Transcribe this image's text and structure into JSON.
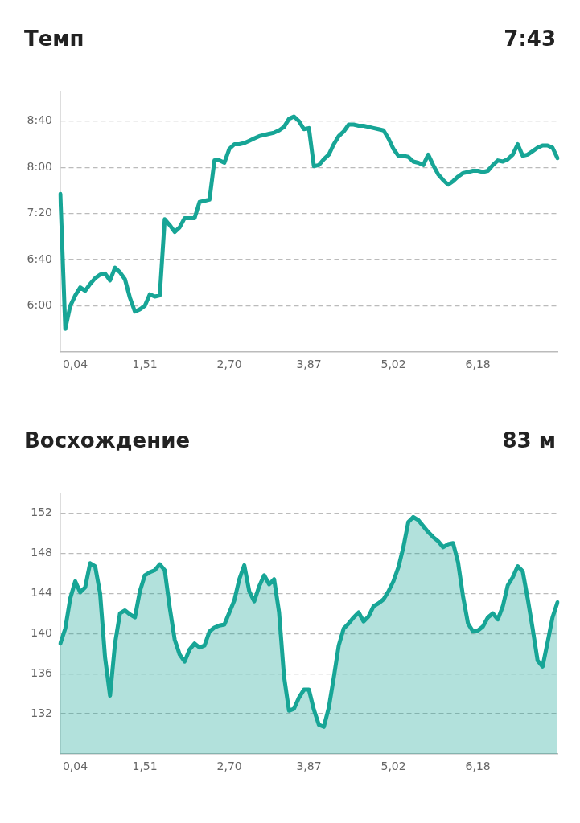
{
  "chart_data": [
    {
      "type": "line",
      "title": "Темп",
      "subtitle": "7:43",
      "marker": "none",
      "grid": "y",
      "ylim": [
        320,
        546
      ],
      "categories": [
        null,
        null,
        null,
        "0,04",
        null,
        null,
        null,
        null,
        null,
        null,
        null,
        null,
        null,
        null,
        null,
        null,
        null,
        "1,51",
        null,
        null,
        null,
        null,
        null,
        null,
        null,
        null,
        null,
        null,
        null,
        null,
        null,
        null,
        null,
        null,
        "2,70",
        null,
        null,
        null,
        null,
        null,
        null,
        null,
        null,
        null,
        null,
        null,
        null,
        null,
        null,
        null,
        "3,87",
        null,
        null,
        null,
        null,
        null,
        null,
        null,
        null,
        null,
        null,
        null,
        null,
        null,
        null,
        null,
        null,
        "5,02",
        null,
        null,
        null,
        null,
        null,
        null,
        null,
        null,
        null,
        null,
        null,
        null,
        null,
        null,
        null,
        null,
        "6,18",
        null,
        null,
        null,
        null,
        null,
        null,
        null,
        null,
        null,
        null,
        null,
        null,
        null,
        null,
        null,
        null
      ],
      "yticks": [
        {
          "value": 360,
          "label": "6:00"
        },
        {
          "value": 400,
          "label": "6:40"
        },
        {
          "value": 440,
          "label": "7:20"
        },
        {
          "value": 480,
          "label": "8:00"
        },
        {
          "value": 520,
          "label": "8:40"
        }
      ],
      "series": [
        {
          "color": "#17a596",
          "values": [
            457,
            340,
            360,
            369,
            376,
            373,
            379,
            384,
            387,
            388,
            382,
            393,
            389,
            383,
            367,
            355,
            357,
            360,
            370,
            368,
            369,
            435,
            430,
            424,
            428,
            436,
            436,
            436,
            450,
            451,
            452,
            486,
            486,
            484,
            496,
            500,
            500,
            501,
            503,
            505,
            507,
            508,
            509,
            510,
            512,
            515,
            522,
            524,
            520,
            513,
            514,
            481,
            482,
            487,
            491,
            500,
            507,
            511,
            517,
            517,
            516,
            516,
            515,
            514,
            513,
            512,
            505,
            496,
            490,
            490,
            489,
            485,
            484,
            482,
            491,
            482,
            474,
            469,
            465,
            468,
            472,
            475,
            476,
            477,
            477,
            476,
            477,
            482,
            486,
            485,
            487,
            491,
            500,
            490,
            491,
            494,
            497,
            499,
            499,
            497,
            488
          ]
        }
      ]
    },
    {
      "type": "area",
      "title": "Восхождение",
      "subtitle": "83 м",
      "marker": "none",
      "grid": "y",
      "ylim": [
        128,
        154
      ],
      "categories": [
        null,
        null,
        null,
        "0,04",
        null,
        null,
        null,
        null,
        null,
        null,
        null,
        null,
        null,
        null,
        null,
        null,
        null,
        "1,51",
        null,
        null,
        null,
        null,
        null,
        null,
        null,
        null,
        null,
        null,
        null,
        null,
        null,
        null,
        null,
        null,
        "2,70",
        null,
        null,
        null,
        null,
        null,
        null,
        null,
        null,
        null,
        null,
        null,
        null,
        null,
        null,
        null,
        "3,87",
        null,
        null,
        null,
        null,
        null,
        null,
        null,
        null,
        null,
        null,
        null,
        null,
        null,
        null,
        null,
        null,
        "5,02",
        null,
        null,
        null,
        null,
        null,
        null,
        null,
        null,
        null,
        null,
        null,
        null,
        null,
        null,
        null,
        null,
        "6,18",
        null,
        null,
        null,
        null,
        null,
        null,
        null,
        null,
        null,
        null,
        null,
        null,
        null,
        null,
        null,
        null
      ],
      "yticks": [
        132,
        136,
        140,
        144,
        148,
        152
      ],
      "series": [
        {
          "color": "#17a596",
          "values": [
            139.0,
            140.5,
            143.5,
            145.2,
            144.1,
            144.6,
            147.0,
            146.7,
            144.0,
            137.6,
            133.8,
            139.0,
            142.0,
            142.3,
            141.9,
            141.6,
            144.2,
            145.8,
            146.1,
            146.3,
            146.9,
            146.3,
            142.6,
            139.4,
            137.9,
            137.2,
            138.4,
            139.0,
            138.6,
            138.8,
            140.2,
            140.6,
            140.8,
            140.9,
            142.1,
            143.3,
            145.4,
            146.8,
            144.2,
            143.2,
            144.7,
            145.8,
            144.9,
            145.4,
            142.1,
            135.7,
            132.3,
            132.5,
            133.6,
            134.4,
            134.4,
            132.4,
            130.9,
            130.7,
            132.6,
            135.6,
            138.8,
            140.5,
            141.0,
            141.6,
            142.1,
            141.2,
            141.7,
            142.7,
            143.0,
            143.4,
            144.2,
            145.2,
            146.6,
            148.6,
            151.1,
            151.6,
            151.3,
            150.7,
            150.1,
            149.6,
            149.2,
            148.6,
            148.9,
            149.0,
            147.1,
            143.7,
            141.0,
            140.2,
            140.3,
            140.7,
            141.6,
            142.0,
            141.4,
            142.7,
            144.8,
            145.6,
            146.7,
            146.2,
            143.5,
            140.5,
            137.3,
            136.7,
            139.1,
            141.6,
            143.1
          ]
        }
      ]
    }
  ]
}
